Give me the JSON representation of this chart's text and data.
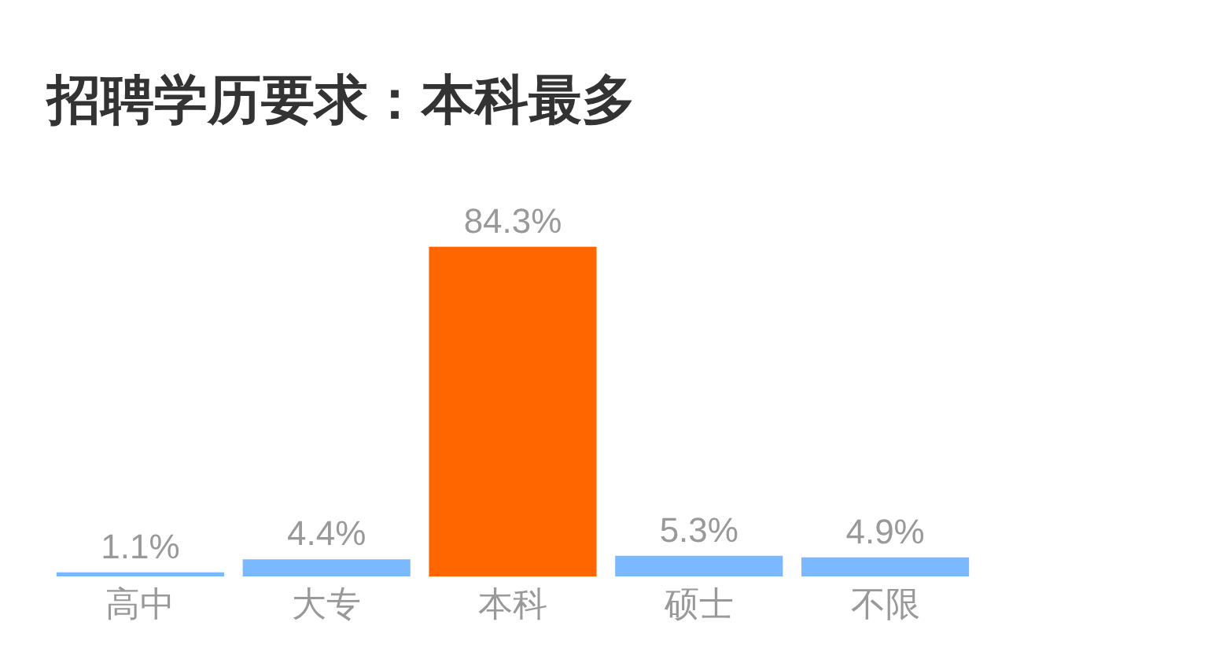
{
  "chart_data": {
    "type": "bar",
    "title": "招聘学历要求：本科最多",
    "categories": [
      "高中",
      "大专",
      "本科",
      "硕士",
      "不限"
    ],
    "values": [
      1.1,
      4.4,
      84.3,
      5.3,
      4.9
    ],
    "colors": [
      "#7ab8ff",
      "#7ab8ff",
      "#ff6600",
      "#7ab8ff",
      "#7ab8ff"
    ],
    "value_labels": [
      "1.1%",
      "4.4%",
      "84.3%",
      "5.3%",
      "4.9%"
    ],
    "grid": false,
    "legend": false,
    "tick_labels": "x"
  }
}
